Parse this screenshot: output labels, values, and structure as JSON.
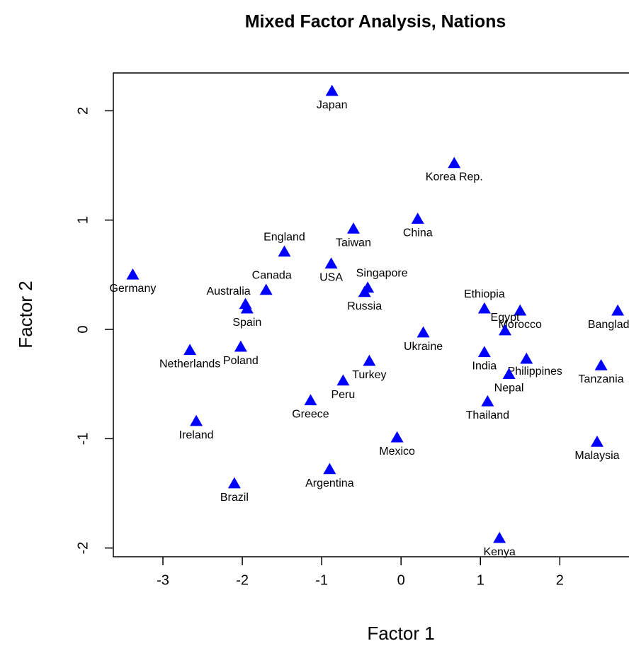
{
  "chart_data": {
    "type": "scatter",
    "title": "Mixed Factor Analysis, Nations",
    "xlabel": "Factor 1",
    "ylabel": "Factor 2",
    "color": "#0000ff",
    "labels": [
      "Japan",
      "Korea Rep.",
      "China",
      "Taiwan",
      "England",
      "USA",
      "Singapore",
      "Russia",
      "Germany",
      "Canada",
      "Australia",
      "Spain",
      "Ethiopia",
      "Morocco",
      "Bangladesh",
      "Egypt",
      "Ukraine",
      "Netherlands",
      "Poland",
      "India",
      "Philippines",
      "Tanzania",
      "Turkey",
      "Nepal",
      "Peru",
      "Greece",
      "Thailand",
      "Ireland",
      "Mexico",
      "Malaysia",
      "Argentina",
      "Brazil",
      "Kenya"
    ],
    "x": [
      -0.87,
      0.67,
      0.21,
      -0.6,
      -1.47,
      -0.88,
      -0.42,
      -0.46,
      -3.38,
      -1.7,
      -1.96,
      -1.94,
      1.05,
      1.5,
      2.73,
      1.31,
      0.28,
      -2.66,
      -2.02,
      1.05,
      1.58,
      2.52,
      -0.4,
      1.36,
      -0.73,
      -1.14,
      1.09,
      -2.58,
      -0.05,
      2.47,
      -0.9,
      -2.1,
      1.24
    ],
    "y": [
      2.18,
      1.52,
      1.01,
      0.92,
      0.71,
      0.6,
      0.38,
      0.34,
      0.5,
      0.36,
      0.23,
      0.19,
      0.19,
      0.17,
      0.17,
      -0.01,
      -0.03,
      -0.19,
      -0.16,
      -0.21,
      -0.27,
      -0.33,
      -0.29,
      -0.41,
      -0.47,
      -0.65,
      -0.66,
      -0.84,
      -0.99,
      -1.03,
      -1.28,
      -1.41,
      -1.91
    ],
    "xlim": [
      -3.625,
      2.97
    ],
    "ylim": [
      -2.08,
      2.346
    ],
    "xticks": [
      -3,
      -2,
      -1,
      0,
      1,
      2
    ],
    "yticks": [
      -2,
      -1,
      0,
      1,
      2
    ]
  }
}
